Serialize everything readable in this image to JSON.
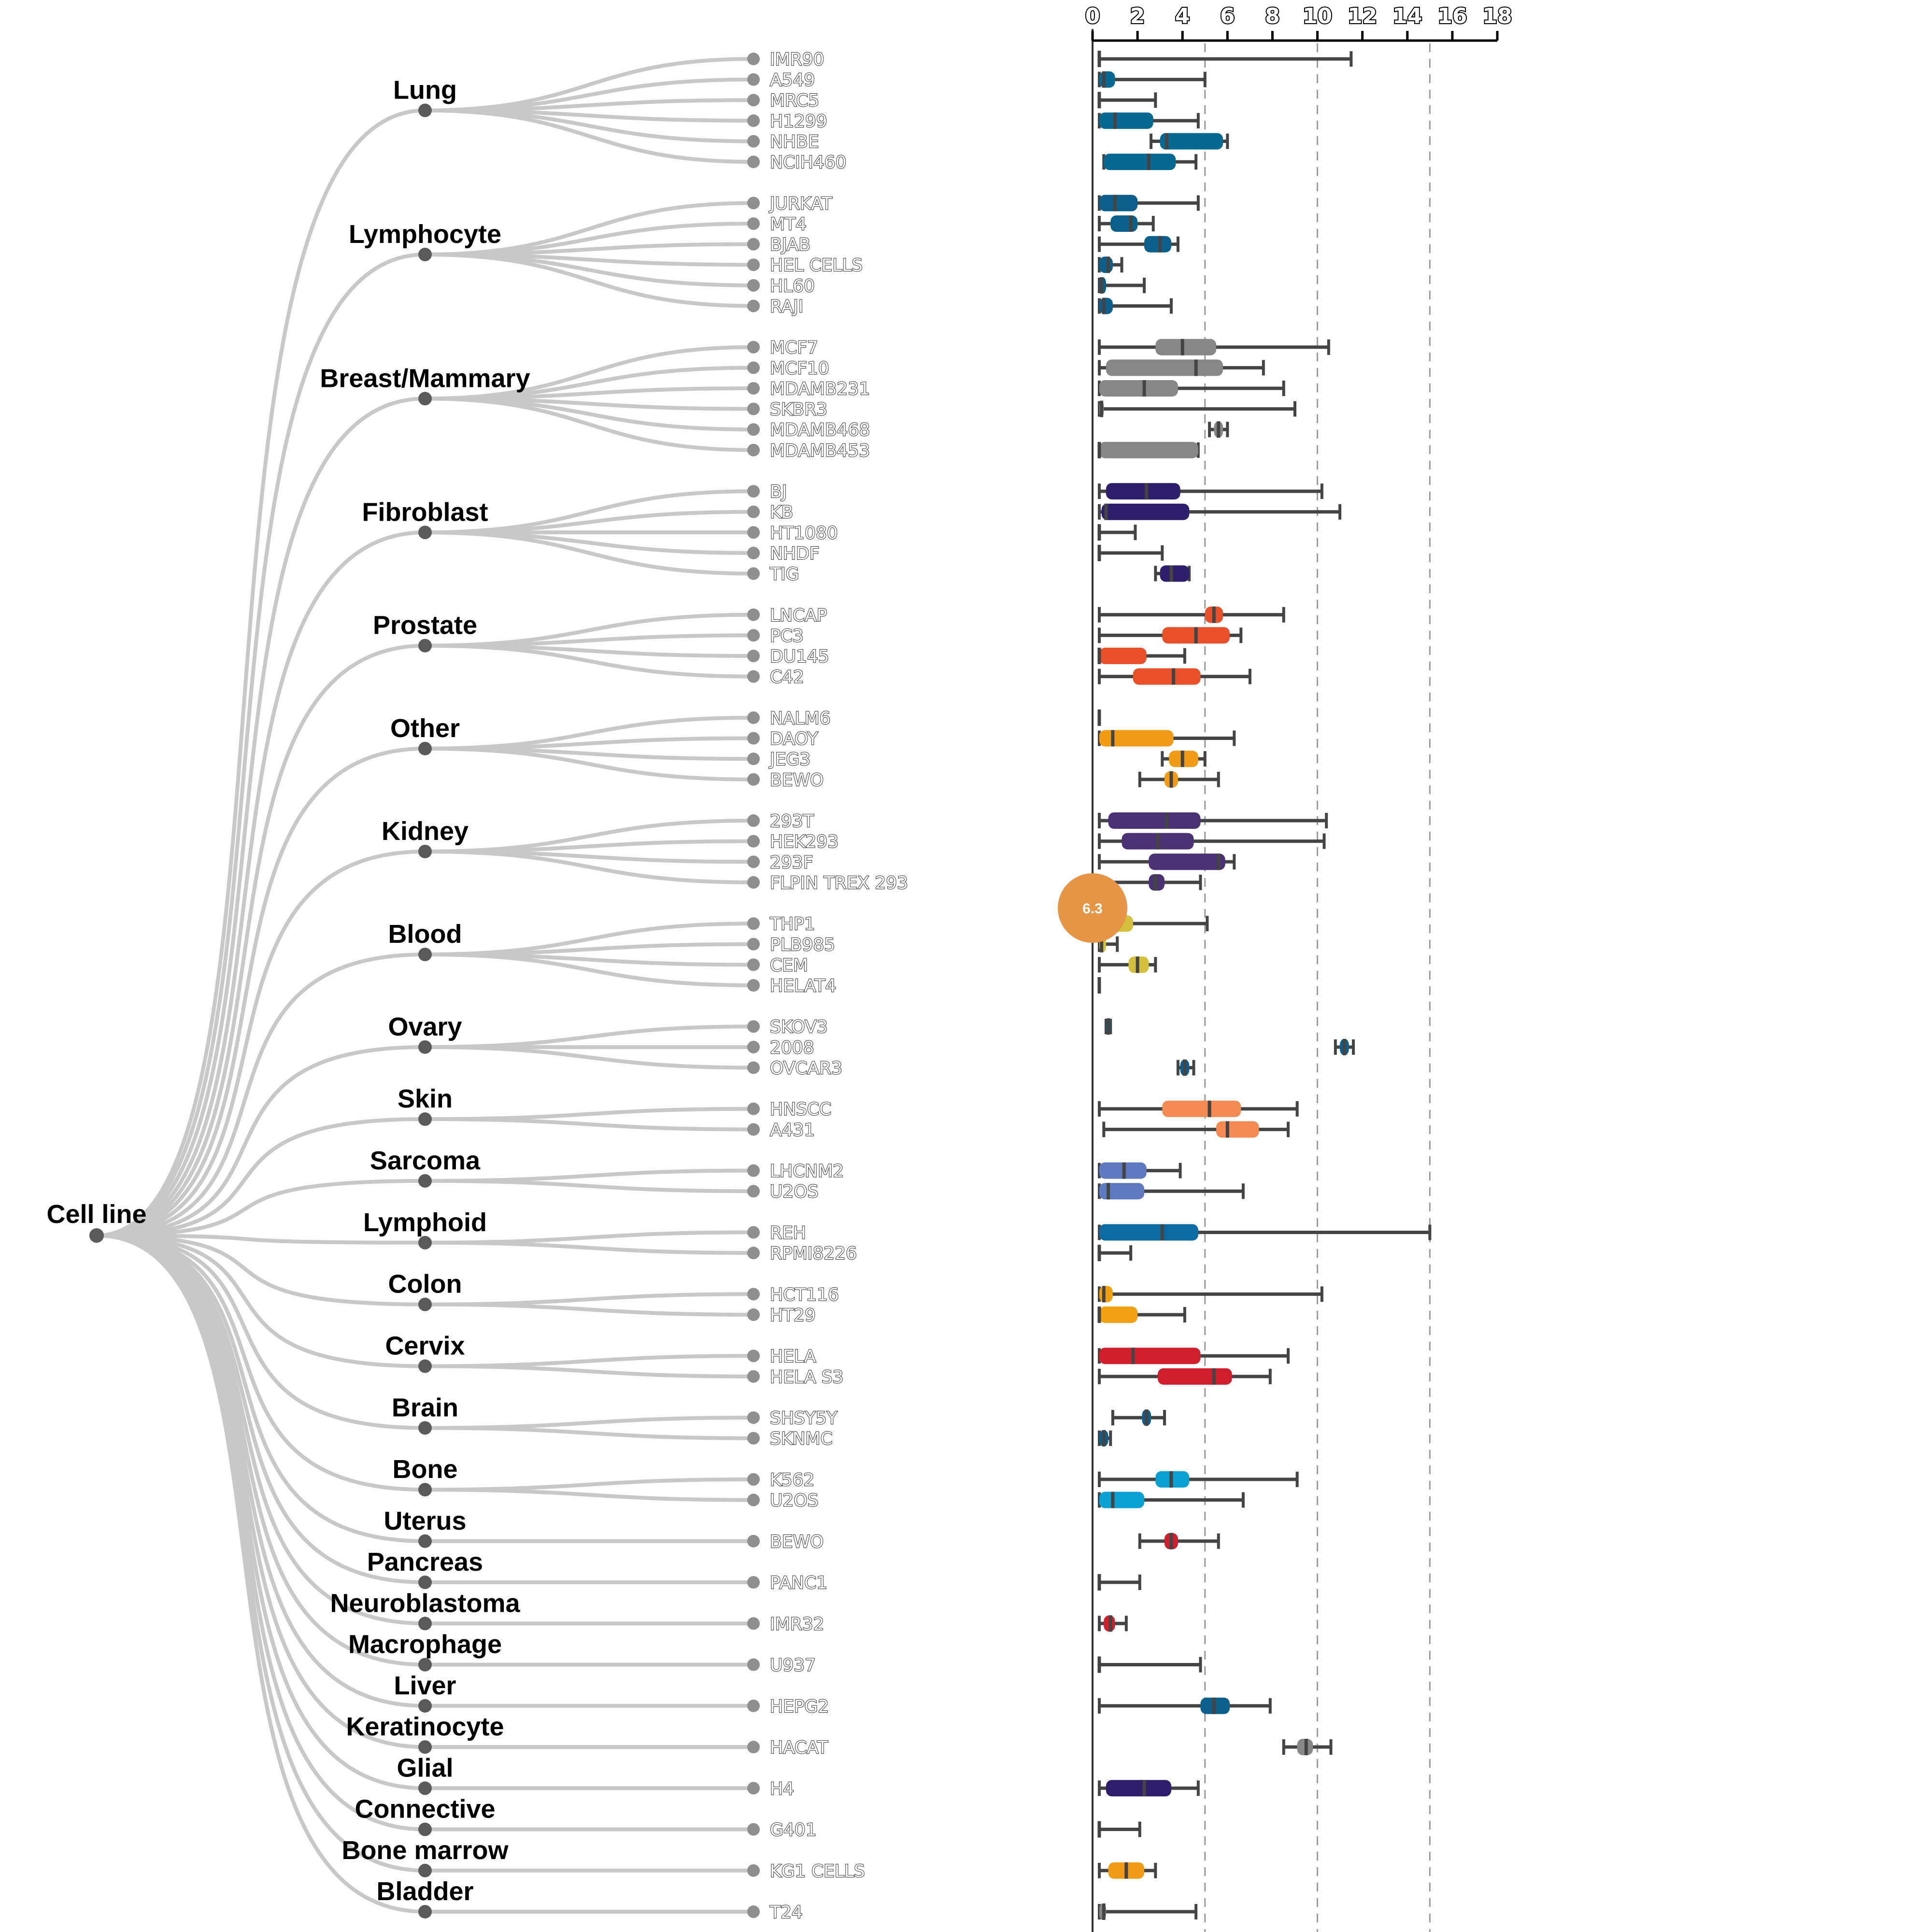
{
  "chart_data": {
    "type": "box",
    "root_label": "Cell line",
    "axis": {
      "min": 0,
      "max": 18,
      "ticks": [
        0,
        2,
        4,
        6,
        8,
        10,
        12,
        14,
        16,
        18
      ],
      "gridlines": [
        5,
        10,
        15
      ]
    },
    "tooltip": {
      "text": "6.3",
      "color": "#e69446"
    },
    "groups": [
      {
        "name": "Lung",
        "color": "#076891",
        "items": [
          {
            "label": "IMR90",
            "min": 0.3,
            "q1": 0.3,
            "median": 0.3,
            "q3": 0.3,
            "max": 11.5
          },
          {
            "label": "A549",
            "min": 0.3,
            "q1": 0.3,
            "median": 0.5,
            "q3": 1.0,
            "max": 5.0
          },
          {
            "label": "MRC5",
            "min": 0.3,
            "q1": 0.3,
            "median": 0.3,
            "q3": 0.3,
            "max": 2.8
          },
          {
            "label": "H1299",
            "min": 0.3,
            "q1": 0.3,
            "median": 1.0,
            "q3": 2.7,
            "max": 4.7
          },
          {
            "label": "NHBE",
            "min": 2.6,
            "q1": 3.0,
            "median": 3.3,
            "q3": 5.8,
            "max": 6.0
          },
          {
            "label": "NCIH460",
            "min": 0.5,
            "q1": 0.5,
            "median": 2.5,
            "q3": 3.7,
            "max": 4.6
          }
        ]
      },
      {
        "name": "Lymphocyte",
        "color": "#0c5f8a",
        "items": [
          {
            "label": "JURKAT",
            "min": 0.3,
            "q1": 0.3,
            "median": 1.0,
            "q3": 2.0,
            "max": 4.7
          },
          {
            "label": "MT4",
            "min": 0.3,
            "q1": 0.8,
            "median": 1.7,
            "q3": 2.0,
            "max": 2.7
          },
          {
            "label": "BJAB",
            "min": 0.3,
            "q1": 2.3,
            "median": 3.0,
            "q3": 3.5,
            "max": 3.8
          },
          {
            "label": "HEL CELLS",
            "min": 0.3,
            "q1": 0.3,
            "median": 0.7,
            "q3": 0.9,
            "max": 1.3
          },
          {
            "label": "HL60",
            "min": 0.3,
            "q1": 0.3,
            "median": 0.4,
            "q3": 0.6,
            "max": 2.3
          },
          {
            "label": "RAJI",
            "min": 0.3,
            "q1": 0.3,
            "median": 0.5,
            "q3": 0.9,
            "max": 3.5
          }
        ]
      },
      {
        "name": "Breast/Mammary",
        "color": "#878787",
        "items": [
          {
            "label": "MCF7",
            "min": 0.3,
            "q1": 2.8,
            "median": 4.0,
            "q3": 5.5,
            "max": 10.5
          },
          {
            "label": "MCF10",
            "min": 0.3,
            "q1": 0.6,
            "median": 4.6,
            "q3": 5.8,
            "max": 7.6
          },
          {
            "label": "MDAMB231",
            "min": 0.3,
            "q1": 0.3,
            "median": 2.3,
            "q3": 3.8,
            "max": 8.5
          },
          {
            "label": "SKBR3",
            "min": 0.3,
            "q1": 0.3,
            "median": 0.4,
            "q3": 0.5,
            "max": 9.0
          },
          {
            "label": "MDAMB468",
            "min": 5.2,
            "q1": 5.4,
            "median": 5.6,
            "q3": 5.8,
            "max": 6.0
          },
          {
            "label": "MDAMB453",
            "min": 0.3,
            "q1": 0.3,
            "median": 0.3,
            "q3": 4.7,
            "max": 4.7
          }
        ]
      },
      {
        "name": "Fibroblast",
        "color": "#2e1e6b",
        "items": [
          {
            "label": "BJ",
            "min": 0.3,
            "q1": 0.6,
            "median": 2.4,
            "q3": 3.9,
            "max": 10.2
          },
          {
            "label": "KB",
            "min": 0.3,
            "q1": 0.4,
            "median": 0.6,
            "q3": 4.3,
            "max": 11.0
          },
          {
            "label": "HT1080",
            "min": 0.3,
            "q1": 0.3,
            "median": 0.3,
            "q3": 0.3,
            "max": 1.9
          },
          {
            "label": "NHDF",
            "min": 0.3,
            "q1": 0.3,
            "median": 0.3,
            "q3": 0.3,
            "max": 3.1
          },
          {
            "label": "TIG",
            "min": 2.8,
            "q1": 3.0,
            "median": 3.5,
            "q3": 4.3,
            "max": 4.3
          }
        ]
      },
      {
        "name": "Prostate",
        "color": "#e8502a",
        "items": [
          {
            "label": "LNCAP",
            "min": 0.3,
            "q1": 5.0,
            "median": 5.4,
            "q3": 5.8,
            "max": 8.5
          },
          {
            "label": "PC3",
            "min": 0.3,
            "q1": 3.1,
            "median": 4.6,
            "q3": 6.1,
            "max": 6.6
          },
          {
            "label": "DU145",
            "min": 0.3,
            "q1": 0.3,
            "median": 0.3,
            "q3": 2.4,
            "max": 4.1
          },
          {
            "label": "C42",
            "min": 0.3,
            "q1": 1.8,
            "median": 3.6,
            "q3": 4.8,
            "max": 7.0
          }
        ]
      },
      {
        "name": "Other",
        "color": "#f29b16",
        "items": [
          {
            "label": "NALM6",
            "min": 0.3,
            "q1": 0.3,
            "median": 0.3,
            "q3": 0.3,
            "max": 0.3
          },
          {
            "label": "DAOY",
            "min": 0.3,
            "q1": 0.3,
            "median": 0.9,
            "q3": 3.6,
            "max": 6.3
          },
          {
            "label": "JEG3",
            "min": 3.1,
            "q1": 3.4,
            "median": 4.0,
            "q3": 4.7,
            "max": 5.0
          },
          {
            "label": "BEWO",
            "min": 2.1,
            "q1": 3.2,
            "median": 3.5,
            "q3": 3.8,
            "max": 5.6
          }
        ]
      },
      {
        "name": "Kidney",
        "color": "#4a3274",
        "items": [
          {
            "label": "293T",
            "min": 0.3,
            "q1": 0.7,
            "median": 3.3,
            "q3": 4.8,
            "max": 10.4
          },
          {
            "label": "HEK293",
            "min": 0.3,
            "q1": 1.3,
            "median": 2.9,
            "q3": 4.5,
            "max": 10.3
          },
          {
            "label": "293F",
            "min": 0.3,
            "q1": 2.5,
            "median": 5.6,
            "q3": 5.9,
            "max": 6.3
          },
          {
            "label": "FLPIN TREX 293",
            "min": 0.3,
            "q1": 2.5,
            "median": 2.8,
            "q3": 3.2,
            "max": 4.8
          }
        ]
      },
      {
        "name": "Blood",
        "color": "#d4c03d",
        "items": [
          {
            "label": "THP1",
            "min": 0.3,
            "q1": 0.7,
            "median": 0.9,
            "q3": 1.8,
            "max": 5.1
          },
          {
            "label": "PLB985",
            "min": 0.3,
            "q1": 0.3,
            "median": 0.4,
            "q3": 0.6,
            "max": 1.1
          },
          {
            "label": "CEM",
            "min": 0.3,
            "q1": 1.6,
            "median": 2.0,
            "q3": 2.5,
            "max": 2.8
          },
          {
            "label": "HELAT4",
            "min": 0.3,
            "q1": 0.3,
            "median": 0.3,
            "q3": 0.3,
            "max": 0.3
          }
        ]
      },
      {
        "name": "Ovary",
        "color": "#0c5f8a",
        "items": [
          {
            "label": "SKOV3",
            "min": 0.6,
            "q1": 0.6,
            "median": 0.7,
            "q3": 0.8,
            "max": 0.8
          },
          {
            "label": "2008",
            "min": 10.8,
            "q1": 11.0,
            "median": 11.2,
            "q3": 11.4,
            "max": 11.6
          },
          {
            "label": "OVCAR3",
            "min": 3.8,
            "q1": 3.9,
            "median": 4.1,
            "q3": 4.3,
            "max": 4.5
          }
        ]
      },
      {
        "name": "Skin",
        "color": "#f28a52",
        "items": [
          {
            "label": "HNSCC",
            "min": 0.3,
            "q1": 3.1,
            "median": 5.2,
            "q3": 6.6,
            "max": 9.1
          },
          {
            "label": "A431",
            "min": 0.5,
            "q1": 5.5,
            "median": 6.0,
            "q3": 7.4,
            "max": 8.7
          }
        ]
      },
      {
        "name": "Sarcoma",
        "color": "#5f78c2",
        "items": [
          {
            "label": "LHCNM2",
            "min": 0.3,
            "q1": 0.3,
            "median": 1.4,
            "q3": 2.4,
            "max": 3.9
          },
          {
            "label": "U2OS",
            "min": 0.3,
            "q1": 0.3,
            "median": 0.7,
            "q3": 2.3,
            "max": 6.7
          }
        ]
      },
      {
        "name": "Lymphoid",
        "color": "#0a6aa1",
        "items": [
          {
            "label": "REH",
            "min": 0.3,
            "q1": 0.3,
            "median": 3.1,
            "q3": 4.7,
            "max": 15.0
          },
          {
            "label": "RPMI8226",
            "min": 0.3,
            "q1": 0.3,
            "median": 0.3,
            "q3": 0.3,
            "max": 1.7
          }
        ]
      },
      {
        "name": "Colon",
        "color": "#f0a010",
        "items": [
          {
            "label": "HCT116",
            "min": 0.3,
            "q1": 0.3,
            "median": 0.5,
            "q3": 0.9,
            "max": 10.2
          },
          {
            "label": "HT29",
            "min": 0.3,
            "q1": 0.3,
            "median": 0.3,
            "q3": 2.0,
            "max": 4.1
          }
        ]
      },
      {
        "name": "Cervix",
        "color": "#d01e2c",
        "items": [
          {
            "label": "HELA",
            "min": 0.3,
            "q1": 0.3,
            "median": 1.8,
            "q3": 4.8,
            "max": 8.7
          },
          {
            "label": "HELA S3",
            "min": 0.3,
            "q1": 2.9,
            "median": 5.4,
            "q3": 6.2,
            "max": 7.9
          }
        ]
      },
      {
        "name": "Brain",
        "color": "#0c5f8a",
        "items": [
          {
            "label": "SHSY5Y",
            "min": 0.9,
            "q1": 2.2,
            "median": 2.4,
            "q3": 2.6,
            "max": 3.2
          },
          {
            "label": "SKNMC",
            "min": 0.3,
            "q1": 0.3,
            "median": 0.5,
            "q3": 0.7,
            "max": 0.8
          }
        ]
      },
      {
        "name": "Bone",
        "color": "#0aa0d2",
        "items": [
          {
            "label": "K562",
            "min": 0.3,
            "q1": 2.8,
            "median": 3.5,
            "q3": 4.3,
            "max": 9.1
          },
          {
            "label": "U2OS",
            "min": 0.3,
            "q1": 0.3,
            "median": 0.9,
            "q3": 2.3,
            "max": 6.7
          }
        ]
      },
      {
        "name": "Uterus",
        "color": "#d01e2c",
        "items": [
          {
            "label": "BEWO",
            "min": 2.1,
            "q1": 3.2,
            "median": 3.5,
            "q3": 3.8,
            "max": 5.6
          }
        ]
      },
      {
        "name": "Pancreas",
        "color": "#878787",
        "items": [
          {
            "label": "PANC1",
            "min": 0.3,
            "q1": 0.3,
            "median": 0.3,
            "q3": 0.3,
            "max": 2.1
          }
        ]
      },
      {
        "name": "Neuroblastoma",
        "color": "#d01e2c",
        "items": [
          {
            "label": "IMR32",
            "min": 0.3,
            "q1": 0.5,
            "median": 0.8,
            "q3": 1.0,
            "max": 1.5
          }
        ]
      },
      {
        "name": "Macrophage",
        "color": "#878787",
        "items": [
          {
            "label": "U937",
            "min": 0.3,
            "q1": 0.3,
            "median": 0.3,
            "q3": 0.3,
            "max": 4.8
          }
        ]
      },
      {
        "name": "Liver",
        "color": "#0c5f8a",
        "items": [
          {
            "label": "HEPG2",
            "min": 0.3,
            "q1": 4.8,
            "median": 5.4,
            "q3": 6.1,
            "max": 7.9
          }
        ]
      },
      {
        "name": "Keratinocyte",
        "color": "#878787",
        "items": [
          {
            "label": "HACAT",
            "min": 8.5,
            "q1": 9.1,
            "median": 9.5,
            "q3": 9.8,
            "max": 10.6
          }
        ]
      },
      {
        "name": "Glial",
        "color": "#2e1e6b",
        "items": [
          {
            "label": "H4",
            "min": 0.3,
            "q1": 0.6,
            "median": 2.3,
            "q3": 3.5,
            "max": 4.7
          }
        ]
      },
      {
        "name": "Connective",
        "color": "#878787",
        "items": [
          {
            "label": "G401",
            "min": 0.3,
            "q1": 0.3,
            "median": 0.3,
            "q3": 0.3,
            "max": 2.1
          }
        ]
      },
      {
        "name": "Bone marrow",
        "color": "#f29b16",
        "items": [
          {
            "label": "KG1 CELLS",
            "min": 0.3,
            "q1": 0.7,
            "median": 1.5,
            "q3": 2.3,
            "max": 2.8
          }
        ]
      },
      {
        "name": "Bladder",
        "color": "#878787",
        "items": [
          {
            "label": "T24",
            "min": 0.3,
            "q1": 0.3,
            "median": 0.5,
            "q3": 0.6,
            "max": 4.6
          }
        ]
      }
    ]
  }
}
